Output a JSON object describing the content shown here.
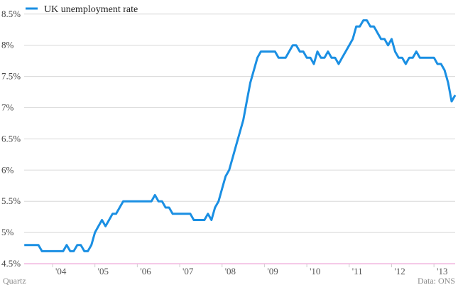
{
  "chart_data": {
    "type": "line",
    "title": "",
    "xlabel": "",
    "ylabel": "",
    "ylim": [
      4.5,
      8.6
    ],
    "xlim": [
      2003.33,
      2013.5
    ],
    "y_ticks": [
      4.5,
      5,
      5.5,
      6,
      6.5,
      7,
      7.5,
      8,
      8.5
    ],
    "y_tick_labels": [
      "4.5%",
      "5%",
      "5.5%",
      "6%",
      "6.5%",
      "7%",
      "7.5%",
      "8%",
      "8.5%"
    ],
    "x_ticks": [
      2004,
      2005,
      2006,
      2007,
      2008,
      2009,
      2010,
      2011,
      2012,
      2013
    ],
    "x_tick_labels": [
      "'04",
      "'05",
      "'06",
      "'07",
      "'08",
      "'09",
      "'10",
      "'11",
      "'12",
      "'13"
    ],
    "legend": {
      "position": "top-left"
    },
    "grid": {
      "horizontal": true,
      "vertical": false
    },
    "colors": {
      "line": "#1a8fe3",
      "grid": "#d8d8d8",
      "baseline": "#f2b8e0",
      "tick": "#cfcfcf"
    },
    "series": [
      {
        "name": "UK unemployment rate",
        "x_start": "2003-05",
        "x_step": "month",
        "values": [
          4.8,
          4.8,
          4.8,
          4.8,
          4.8,
          4.7,
          4.7,
          4.7,
          4.7,
          4.7,
          4.7,
          4.7,
          4.8,
          4.7,
          4.7,
          4.8,
          4.8,
          4.7,
          4.7,
          4.8,
          5.0,
          5.1,
          5.2,
          5.1,
          5.2,
          5.3,
          5.3,
          5.4,
          5.5,
          5.5,
          5.5,
          5.5,
          5.5,
          5.5,
          5.5,
          5.5,
          5.5,
          5.6,
          5.5,
          5.5,
          5.4,
          5.4,
          5.3,
          5.3,
          5.3,
          5.3,
          5.3,
          5.3,
          5.2,
          5.2,
          5.2,
          5.2,
          5.3,
          5.2,
          5.4,
          5.5,
          5.7,
          5.9,
          6.0,
          6.2,
          6.4,
          6.6,
          6.8,
          7.1,
          7.4,
          7.6,
          7.8,
          7.9,
          7.9,
          7.9,
          7.9,
          7.9,
          7.8,
          7.8,
          7.8,
          7.9,
          8.0,
          8.0,
          7.9,
          7.9,
          7.8,
          7.8,
          7.7,
          7.9,
          7.8,
          7.8,
          7.9,
          7.8,
          7.8,
          7.7,
          7.8,
          7.9,
          8.0,
          8.1,
          8.3,
          8.3,
          8.4,
          8.4,
          8.3,
          8.3,
          8.2,
          8.1,
          8.1,
          8.0,
          8.1,
          7.9,
          7.8,
          7.8,
          7.7,
          7.8,
          7.8,
          7.9,
          7.8,
          7.8,
          7.8,
          7.8,
          7.8,
          7.7,
          7.7,
          7.6,
          7.4,
          7.1,
          7.2
        ]
      }
    ]
  },
  "footer": {
    "credit_left": "Quartz",
    "credit_right": "Data: ONS"
  }
}
